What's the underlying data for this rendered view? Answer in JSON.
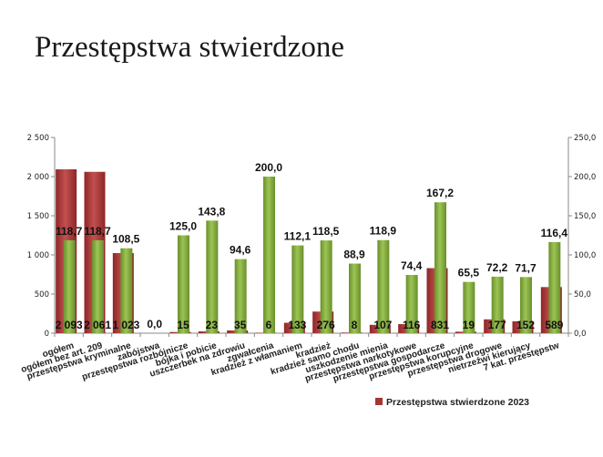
{
  "title": "Przestępstwa stwierdzone",
  "chart_data": {
    "type": "bar",
    "title": "Przestępstwa stwierdzone",
    "categories": [
      "ogółem",
      "ogółem bez art. 209",
      "przestępstwa kryminalne",
      "zabójstwa",
      "przestępstwa rozbójnicze",
      "bójka i pobicie",
      "uszczerbek na zdrowiu",
      "zgwałcenia",
      "kradzież z włamaniem",
      "kradzież",
      "kradzież samo chodu",
      "uszkodzenie mienia",
      "przestępstwa narkotykowe",
      "przestępstwa gospodarcze",
      "przestępstwa korupcyjne",
      "przestępstwa drogowe",
      "nietrzeźwi kierujący",
      "7 kat. przestępstw"
    ],
    "series": [
      {
        "name": "Przestępstwa stwierdzone 2023",
        "axis": "left",
        "color": "#a83434",
        "values": [
          2093,
          2061,
          1023,
          0,
          15,
          23,
          35,
          6,
          133,
          276,
          8,
          107,
          116,
          831,
          19,
          177,
          152,
          589
        ],
        "labels": [
          "2 093",
          "2 061",
          "1 023",
          "",
          "15",
          "23",
          "35",
          "6",
          "133",
          "276",
          "8",
          "107",
          "116",
          "831",
          "19",
          "177",
          "152",
          "589"
        ]
      },
      {
        "axis": "right",
        "color": "#7fa53c",
        "values": [
          118.7,
          118.7,
          108.5,
          0.0,
          125.0,
          143.8,
          94.6,
          200.0,
          112.1,
          118.5,
          88.9,
          118.9,
          74.4,
          167.2,
          65.5,
          72.2,
          71.7,
          116.4
        ],
        "labels": [
          "118,7",
          "118,7",
          "108,5",
          "0,0",
          "125,0",
          "143,8",
          "94,6",
          "200,0",
          "112,1",
          "118,5",
          "88,9",
          "118,9",
          "74,4",
          "167,2",
          "65,5",
          "72,2",
          "71,7",
          "116,4"
        ]
      }
    ],
    "y_left": {
      "range": [
        0,
        2500
      ],
      "ticks": [
        0,
        500,
        1000,
        1500,
        2000,
        2500
      ],
      "tick_labels": [
        "0",
        "500",
        "1 000",
        "1 500",
        "2 000",
        "2 500"
      ]
    },
    "y_right": {
      "range": [
        0,
        250
      ],
      "ticks": [
        0,
        50,
        100,
        150,
        200,
        250
      ],
      "tick_labels": [
        "0,0",
        "50,0",
        "100,0",
        "150,0",
        "200,0",
        "250,0"
      ]
    },
    "grid": false,
    "legend": {
      "position": "bottom-right",
      "entries": [
        "Przestępstwa stwierdzone 2023"
      ]
    }
  }
}
